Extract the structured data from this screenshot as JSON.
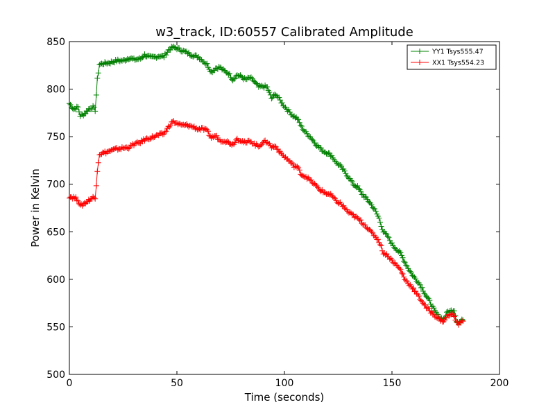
{
  "chart_data": {
    "type": "line",
    "title": "w3_track, ID:60557 Calibrated Amplitude",
    "xlabel": "Time (seconds)",
    "ylabel": "Power in Kelvin",
    "xlim": [
      0,
      200
    ],
    "ylim": [
      500,
      850
    ],
    "xticks": [
      "0",
      "50",
      "100",
      "150",
      "200"
    ],
    "yticks": [
      "500",
      "550",
      "600",
      "650",
      "700",
      "750",
      "800",
      "850"
    ],
    "legend_position": "top-right",
    "marker": "+",
    "series": [
      {
        "name": "YY1 Tsys555.47",
        "color": "#008000",
        "points": [
          [
            0,
            785
          ],
          [
            2,
            779
          ],
          [
            4,
            781
          ],
          [
            5,
            772
          ],
          [
            7,
            774
          ],
          [
            9,
            779
          ],
          [
            11,
            781
          ],
          [
            12,
            778
          ],
          [
            13,
            810
          ],
          [
            14,
            826
          ],
          [
            16,
            827
          ],
          [
            19,
            828
          ],
          [
            22,
            830
          ],
          [
            25,
            830
          ],
          [
            28,
            833
          ],
          [
            30,
            831
          ],
          [
            33,
            832
          ],
          [
            35,
            836
          ],
          [
            38,
            833
          ],
          [
            42,
            835
          ],
          [
            44,
            834
          ],
          [
            46,
            841
          ],
          [
            48,
            844
          ],
          [
            50,
            843
          ],
          [
            52,
            841
          ],
          [
            55,
            838
          ],
          [
            58,
            835
          ],
          [
            60,
            834
          ],
          [
            62,
            830
          ],
          [
            64,
            826
          ],
          [
            66,
            818
          ],
          [
            68,
            822
          ],
          [
            70,
            823
          ],
          [
            72,
            819
          ],
          [
            74,
            817
          ],
          [
            76,
            810
          ],
          [
            78,
            815
          ],
          [
            80,
            813
          ],
          [
            82,
            810
          ],
          [
            84,
            812
          ],
          [
            86,
            808
          ],
          [
            88,
            802
          ],
          [
            90,
            803
          ],
          [
            92,
            802
          ],
          [
            94,
            790
          ],
          [
            96,
            795
          ],
          [
            98,
            788
          ],
          [
            100,
            782
          ],
          [
            102,
            777
          ],
          [
            104,
            772
          ],
          [
            106,
            769
          ],
          [
            108,
            760
          ],
          [
            110,
            754
          ],
          [
            112,
            750
          ],
          [
            114,
            744
          ],
          [
            116,
            739
          ],
          [
            118,
            735
          ],
          [
            120,
            733
          ],
          [
            122,
            730
          ],
          [
            124,
            723
          ],
          [
            126,
            719
          ],
          [
            128,
            713
          ],
          [
            130,
            707
          ],
          [
            132,
            700
          ],
          [
            134,
            697
          ],
          [
            136,
            690
          ],
          [
            138,
            685
          ],
          [
            140,
            680
          ],
          [
            142,
            673
          ],
          [
            144,
            664
          ],
          [
            146,
            650
          ],
          [
            148,
            645
          ],
          [
            150,
            637
          ],
          [
            152,
            632
          ],
          [
            154,
            627
          ],
          [
            156,
            618
          ],
          [
            158,
            610
          ],
          [
            160,
            603
          ],
          [
            162,
            598
          ],
          [
            164,
            591
          ],
          [
            166,
            582
          ],
          [
            168,
            575
          ],
          [
            170,
            566
          ],
          [
            172,
            560
          ],
          [
            174,
            558
          ],
          [
            176,
            566
          ],
          [
            178,
            567
          ],
          [
            179,
            568
          ],
          [
            180,
            557
          ],
          [
            181,
            553
          ],
          [
            182,
            556
          ],
          [
            183,
            557
          ]
        ]
      },
      {
        "name": "XX1 Tsys554.23",
        "color": "#ff0000",
        "points": [
          [
            0,
            687
          ],
          [
            2,
            686
          ],
          [
            4,
            684
          ],
          [
            5,
            677
          ],
          [
            7,
            680
          ],
          [
            9,
            683
          ],
          [
            11,
            686
          ],
          [
            12,
            685
          ],
          [
            13,
            715
          ],
          [
            14,
            732
          ],
          [
            16,
            733
          ],
          [
            19,
            735
          ],
          [
            22,
            737
          ],
          [
            25,
            738
          ],
          [
            28,
            739
          ],
          [
            30,
            742
          ],
          [
            33,
            744
          ],
          [
            35,
            747
          ],
          [
            38,
            749
          ],
          [
            42,
            752
          ],
          [
            44,
            753
          ],
          [
            46,
            760
          ],
          [
            48,
            766
          ],
          [
            50,
            764
          ],
          [
            52,
            762
          ],
          [
            55,
            762
          ],
          [
            58,
            760
          ],
          [
            60,
            758
          ],
          [
            62,
            758
          ],
          [
            64,
            756
          ],
          [
            66,
            749
          ],
          [
            68,
            751
          ],
          [
            70,
            746
          ],
          [
            72,
            746
          ],
          [
            74,
            744
          ],
          [
            76,
            742
          ],
          [
            78,
            748
          ],
          [
            80,
            746
          ],
          [
            82,
            743
          ],
          [
            84,
            746
          ],
          [
            86,
            742
          ],
          [
            88,
            740
          ],
          [
            90,
            744
          ],
          [
            92,
            745
          ],
          [
            94,
            739
          ],
          [
            96,
            740
          ],
          [
            98,
            733
          ],
          [
            100,
            729
          ],
          [
            102,
            725
          ],
          [
            104,
            720
          ],
          [
            106,
            718
          ],
          [
            108,
            710
          ],
          [
            110,
            708
          ],
          [
            112,
            704
          ],
          [
            114,
            700
          ],
          [
            116,
            695
          ],
          [
            118,
            692
          ],
          [
            120,
            690
          ],
          [
            122,
            688
          ],
          [
            124,
            682
          ],
          [
            126,
            680
          ],
          [
            128,
            675
          ],
          [
            130,
            670
          ],
          [
            132,
            667
          ],
          [
            134,
            664
          ],
          [
            136,
            660
          ],
          [
            138,
            656
          ],
          [
            140,
            650
          ],
          [
            142,
            646
          ],
          [
            144,
            640
          ],
          [
            146,
            628
          ],
          [
            148,
            625
          ],
          [
            150,
            620
          ],
          [
            152,
            615
          ],
          [
            154,
            610
          ],
          [
            156,
            600
          ],
          [
            158,
            595
          ],
          [
            160,
            590
          ],
          [
            162,
            583
          ],
          [
            164,
            577
          ],
          [
            166,
            570
          ],
          [
            168,
            566
          ],
          [
            170,
            562
          ],
          [
            172,
            558
          ],
          [
            174,
            556
          ],
          [
            176,
            562
          ],
          [
            178,
            563
          ],
          [
            179,
            562
          ],
          [
            180,
            555
          ],
          [
            181,
            553
          ],
          [
            182,
            555
          ],
          [
            183,
            556
          ]
        ]
      }
    ]
  }
}
